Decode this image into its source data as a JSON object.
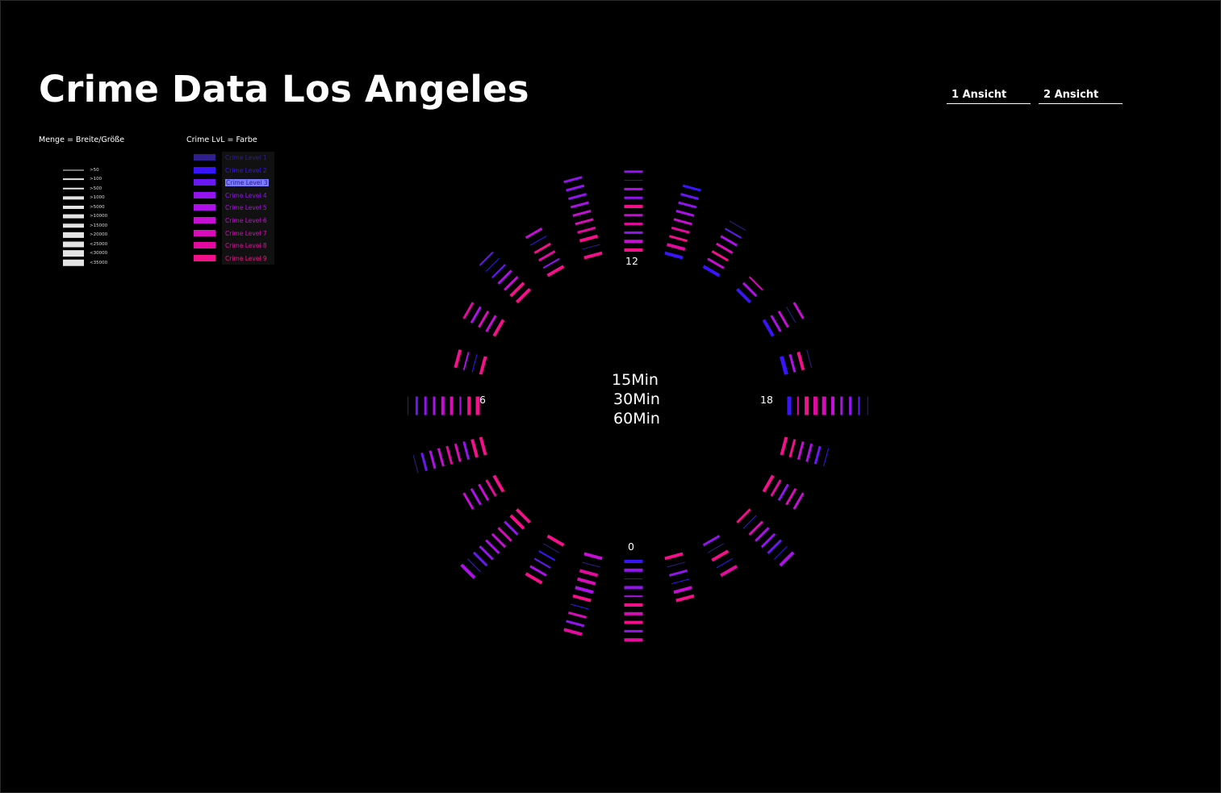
{
  "page": {
    "title": "Crime Data Los Angeles",
    "tabs": [
      "1 Ansicht",
      "2 Ansicht"
    ]
  },
  "legend": {
    "size_heading": "Menge = Breite/Größe",
    "color_heading": "Crime LvL = Farbe",
    "size_items": [
      ">50",
      ">100",
      ">500",
      ">1000",
      ">5000",
      ">10000",
      ">15000",
      ">20000",
      "<25000",
      "<30000",
      "<35000"
    ],
    "level_items": [
      "Crime Level 1",
      "Crime Level 2",
      "Crime Level 3",
      "Crime Level 4",
      "Crime Level 5",
      "Crime Level 6",
      "Crime Level 7",
      "Crime Level 8",
      "Crime Level 9"
    ],
    "selected_level": 3
  },
  "colors": {
    "background": "#000000",
    "levels": [
      "#2e1f8c",
      "#3a14ff",
      "#6a18f2",
      "#9414f0",
      "#ad10e8",
      "#c60ed4",
      "#d80cb8",
      "#e40aa0",
      "#f4108a"
    ],
    "size_bar": "#e4e4e4"
  },
  "chart_data": {
    "type": "radial-bar",
    "center_labels": [
      "15Min",
      "30Min",
      "60Min"
    ],
    "hour_labels": [
      "0",
      "6",
      "12",
      "18"
    ],
    "encoding": {
      "count": "bar width",
      "crime_level": "color (1-9)"
    },
    "hours": [
      {
        "hour": 0,
        "marks": [
          {
            "lvl": 2,
            "w": 4
          },
          {
            "lvl": 4,
            "w": 4
          },
          {
            "lvl": 1,
            "w": 1
          },
          {
            "lvl": 4,
            "w": 4
          },
          {
            "lvl": 5,
            "w": 2
          },
          {
            "lvl": 9,
            "w": 4
          },
          {
            "lvl": 7,
            "w": 4
          },
          {
            "lvl": 9,
            "w": 4
          },
          {
            "lvl": 4,
            "w": 3
          },
          {
            "lvl": 8,
            "w": 4
          }
        ]
      },
      {
        "hour": 1,
        "marks": [
          {
            "lvl": 9,
            "w": 4
          },
          {
            "lvl": 1,
            "w": 1
          },
          {
            "lvl": 4,
            "w": 3
          },
          {
            "lvl": 2,
            "w": 1
          },
          {
            "lvl": 6,
            "w": 4
          },
          {
            "lvl": 9,
            "w": 4
          }
        ]
      },
      {
        "hour": 2,
        "marks": [
          {
            "lvl": 4,
            "w": 3
          },
          {
            "lvl": 1,
            "w": 1
          },
          {
            "lvl": 9,
            "w": 4
          },
          {
            "lvl": 2,
            "w": 1
          },
          {
            "lvl": 8,
            "w": 4
          }
        ]
      },
      {
        "hour": 3,
        "marks": [
          {
            "lvl": 9,
            "w": 3
          },
          {
            "lvl": 2,
            "w": 1
          },
          {
            "lvl": 7,
            "w": 3
          },
          {
            "lvl": 5,
            "w": 3
          },
          {
            "lvl": 4,
            "w": 3
          },
          {
            "lvl": 3,
            "w": 3
          },
          {
            "lvl": 2,
            "w": 1
          },
          {
            "lvl": 5,
            "w": 4
          }
        ]
      },
      {
        "hour": 4,
        "marks": [
          {
            "lvl": 9,
            "w": 4
          },
          {
            "lvl": 8,
            "w": 3
          },
          {
            "lvl": 4,
            "w": 3
          },
          {
            "lvl": 7,
            "w": 3
          },
          {
            "lvl": 6,
            "w": 3
          }
        ]
      },
      {
        "hour": 5,
        "marks": [
          {
            "lvl": 9,
            "w": 4
          },
          {
            "lvl": 9,
            "w": 3
          },
          {
            "lvl": 6,
            "w": 3
          },
          {
            "lvl": 5,
            "w": 3
          },
          {
            "lvl": 3,
            "w": 3
          },
          {
            "lvl": 2,
            "w": 1
          }
        ]
      },
      {
        "hour": 6,
        "marks": [
          {
            "lvl": 2,
            "w": 5
          },
          {
            "lvl": 8,
            "w": 2
          },
          {
            "lvl": 9,
            "w": 5
          },
          {
            "lvl": 8,
            "w": 5
          },
          {
            "lvl": 7,
            "w": 5
          },
          {
            "lvl": 6,
            "w": 4
          },
          {
            "lvl": 5,
            "w": 3
          },
          {
            "lvl": 4,
            "w": 3
          },
          {
            "lvl": 3,
            "w": 2
          },
          {
            "lvl": 1,
            "w": 1
          }
        ]
      },
      {
        "hour": 7,
        "marks": [
          {
            "lvl": 2,
            "w": 5
          },
          {
            "lvl": 5,
            "w": 3
          },
          {
            "lvl": 9,
            "w": 4
          },
          {
            "lvl": 1,
            "w": 1
          }
        ]
      },
      {
        "hour": 8,
        "marks": [
          {
            "lvl": 2,
            "w": 4
          },
          {
            "lvl": 5,
            "w": 3
          },
          {
            "lvl": 6,
            "w": 3
          },
          {
            "lvl": 1,
            "w": 1
          },
          {
            "lvl": 6,
            "w": 3
          }
        ]
      },
      {
        "hour": 9,
        "marks": [
          {
            "lvl": 2,
            "w": 4
          },
          {
            "lvl": 5,
            "w": 3
          },
          {
            "lvl": 7,
            "w": 2
          }
        ]
      },
      {
        "hour": 10,
        "marks": [
          {
            "lvl": 2,
            "w": 4
          },
          {
            "lvl": 6,
            "w": 3
          },
          {
            "lvl": 9,
            "w": 3
          },
          {
            "lvl": 7,
            "w": 3
          },
          {
            "lvl": 5,
            "w": 3
          },
          {
            "lvl": 3,
            "w": 2
          },
          {
            "lvl": 1,
            "w": 1
          }
        ]
      },
      {
        "hour": 11,
        "marks": [
          {
            "lvl": 2,
            "w": 4
          },
          {
            "lvl": 8,
            "w": 4
          },
          {
            "lvl": 9,
            "w": 3
          },
          {
            "lvl": 8,
            "w": 3
          },
          {
            "lvl": 6,
            "w": 3
          },
          {
            "lvl": 5,
            "w": 3
          },
          {
            "lvl": 4,
            "w": 3
          },
          {
            "lvl": 3,
            "w": 3
          },
          {
            "lvl": 2,
            "w": 3
          }
        ]
      },
      {
        "hour": 12,
        "marks": [
          {
            "lvl": 9,
            "w": 4
          },
          {
            "lvl": 6,
            "w": 4
          },
          {
            "lvl": 4,
            "w": 3
          },
          {
            "lvl": 8,
            "w": 3
          },
          {
            "lvl": 6,
            "w": 3
          },
          {
            "lvl": 9,
            "w": 4
          },
          {
            "lvl": 4,
            "w": 3
          },
          {
            "lvl": 5,
            "w": 3
          },
          {
            "lvl": 1,
            "w": 1
          },
          {
            "lvl": 4,
            "w": 3
          }
        ]
      },
      {
        "hour": 13,
        "marks": [
          {
            "lvl": 9,
            "w": 4
          },
          {
            "lvl": 1,
            "w": 1
          },
          {
            "lvl": 9,
            "w": 4
          },
          {
            "lvl": 8,
            "w": 3
          },
          {
            "lvl": 7,
            "w": 3
          },
          {
            "lvl": 6,
            "w": 3
          },
          {
            "lvl": 5,
            "w": 3
          },
          {
            "lvl": 4,
            "w": 3
          },
          {
            "lvl": 4,
            "w": 3
          },
          {
            "lvl": 4,
            "w": 3
          }
        ]
      },
      {
        "hour": 14,
        "marks": [
          {
            "lvl": 9,
            "w": 4
          },
          {
            "lvl": 4,
            "w": 2
          },
          {
            "lvl": 8,
            "w": 3
          },
          {
            "lvl": 9,
            "w": 3
          },
          {
            "lvl": 2,
            "w": 1
          },
          {
            "lvl": 6,
            "w": 3
          }
        ]
      },
      {
        "hour": 15,
        "marks": [
          {
            "lvl": 9,
            "w": 4
          },
          {
            "lvl": 9,
            "w": 4
          },
          {
            "lvl": 6,
            "w": 3
          },
          {
            "lvl": 5,
            "w": 3
          },
          {
            "lvl": 3,
            "w": 2
          },
          {
            "lvl": 2,
            "w": 1
          },
          {
            "lvl": 3,
            "w": 2
          }
        ]
      },
      {
        "hour": 16,
        "marks": [
          {
            "lvl": 9,
            "w": 4
          },
          {
            "lvl": 6,
            "w": 3
          },
          {
            "lvl": 7,
            "w": 3
          },
          {
            "lvl": 5,
            "w": 3
          },
          {
            "lvl": 8,
            "w": 3
          }
        ]
      },
      {
        "hour": 17,
        "marks": [
          {
            "lvl": 9,
            "w": 4
          },
          {
            "lvl": 2,
            "w": 1
          },
          {
            "lvl": 5,
            "w": 2
          },
          {
            "lvl": 9,
            "w": 4
          }
        ]
      },
      {
        "hour": 18,
        "marks": [
          {
            "lvl": 9,
            "w": 5
          },
          {
            "lvl": 9,
            "w": 4
          },
          {
            "lvl": 5,
            "w": 2
          },
          {
            "lvl": 7,
            "w": 4
          },
          {
            "lvl": 6,
            "w": 4
          },
          {
            "lvl": 5,
            "w": 3
          },
          {
            "lvl": 4,
            "w": 3
          },
          {
            "lvl": 3,
            "w": 3
          },
          {
            "lvl": 1,
            "w": 1
          }
        ]
      },
      {
        "hour": 19,
        "marks": [
          {
            "lvl": 9,
            "w": 4
          },
          {
            "lvl": 9,
            "w": 4
          },
          {
            "lvl": 4,
            "w": 3
          },
          {
            "lvl": 7,
            "w": 3
          },
          {
            "lvl": 8,
            "w": 3
          },
          {
            "lvl": 6,
            "w": 3
          },
          {
            "lvl": 5,
            "w": 3
          },
          {
            "lvl": 3,
            "w": 3
          },
          {
            "lvl": 1,
            "w": 1
          }
        ]
      },
      {
        "hour": 20,
        "marks": [
          {
            "lvl": 9,
            "w": 4
          },
          {
            "lvl": 8,
            "w": 3
          },
          {
            "lvl": 6,
            "w": 3
          },
          {
            "lvl": 5,
            "w": 3
          },
          {
            "lvl": 6,
            "w": 3
          }
        ]
      },
      {
        "hour": 21,
        "marks": [
          {
            "lvl": 9,
            "w": 4
          },
          {
            "lvl": 9,
            "w": 4
          },
          {
            "lvl": 4,
            "w": 3
          },
          {
            "lvl": 7,
            "w": 3
          },
          {
            "lvl": 6,
            "w": 3
          },
          {
            "lvl": 5,
            "w": 3
          },
          {
            "lvl": 4,
            "w": 3
          },
          {
            "lvl": 3,
            "w": 3
          },
          {
            "lvl": 2,
            "w": 1
          },
          {
            "lvl": 5,
            "w": 4
          }
        ]
      },
      {
        "hour": 22,
        "marks": [
          {
            "lvl": 9,
            "w": 4
          },
          {
            "lvl": 1,
            "w": 1
          },
          {
            "lvl": 2,
            "w": 2
          },
          {
            "lvl": 3,
            "w": 2
          },
          {
            "lvl": 5,
            "w": 3
          },
          {
            "lvl": 9,
            "w": 4
          }
        ]
      },
      {
        "hour": 23,
        "marks": [
          {
            "lvl": 6,
            "w": 4
          },
          {
            "lvl": 1,
            "w": 1
          },
          {
            "lvl": 8,
            "w": 4
          },
          {
            "lvl": 7,
            "w": 4
          },
          {
            "lvl": 5,
            "w": 4
          },
          {
            "lvl": 9,
            "w": 4
          },
          {
            "lvl": 2,
            "w": 1
          },
          {
            "lvl": 7,
            "w": 3
          },
          {
            "lvl": 4,
            "w": 3
          },
          {
            "lvl": 8,
            "w": 4
          }
        ]
      }
    ]
  }
}
